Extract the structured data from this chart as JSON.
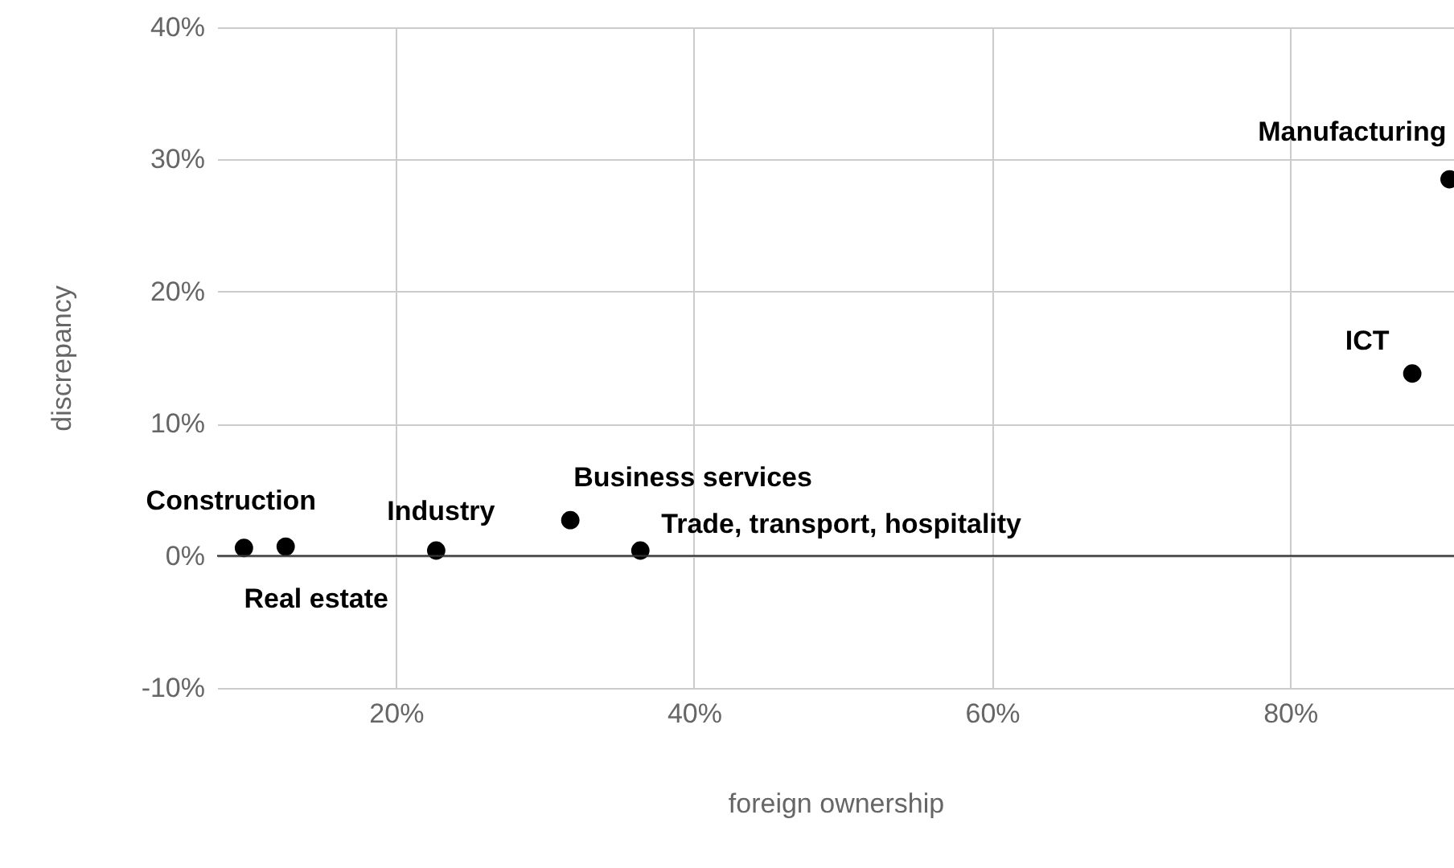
{
  "chart_data": {
    "type": "scatter",
    "xlabel": "foreign ownership",
    "ylabel": "discrepancy",
    "x": [
      9.8,
      12.6,
      22.7,
      31.7,
      36.4,
      88.2,
      90.7
    ],
    "series": [
      {
        "color": "#000000",
        "values": [
          0.6,
          0.7,
          0.4,
          2.7,
          0.4,
          13.8,
          28.5
        ]
      }
    ],
    "xlim": [
      8,
      91
    ],
    "ylim": [
      -10,
      40
    ],
    "xticks": [
      {
        "value": 20,
        "label": "20%"
      },
      {
        "value": 40,
        "label": "40%"
      },
      {
        "value": 60,
        "label": "60%"
      },
      {
        "value": 80,
        "label": "80%"
      }
    ],
    "yticks": [
      {
        "value": -10,
        "label": "-10%"
      },
      {
        "value": 0,
        "label": "0%"
      },
      {
        "value": 10,
        "label": "10%"
      },
      {
        "value": 20,
        "label": "20%"
      },
      {
        "value": 30,
        "label": "30%"
      },
      {
        "value": 40,
        "label": "40%"
      }
    ],
    "ref_lines": [
      {
        "axis": "y",
        "value": 0,
        "color": "#333333"
      }
    ],
    "annotations": [
      {
        "text": "Construction",
        "x": 9.8,
        "y": 0.6
      },
      {
        "text": "Real estate",
        "x": 12.6,
        "y": 0.7
      },
      {
        "text": "Industry",
        "x": 22.7,
        "y": 0.4
      },
      {
        "text": "Business services",
        "x": 31.7,
        "y": 2.7
      },
      {
        "text": "Trade, transport, hospitality",
        "x": 36.4,
        "y": 0.4
      },
      {
        "text": "ICT",
        "x": 88.2,
        "y": 13.8
      },
      {
        "text": "Manufacturing",
        "x": 90.7,
        "y": 28.5
      }
    ],
    "grid": true,
    "marker": "circle"
  }
}
